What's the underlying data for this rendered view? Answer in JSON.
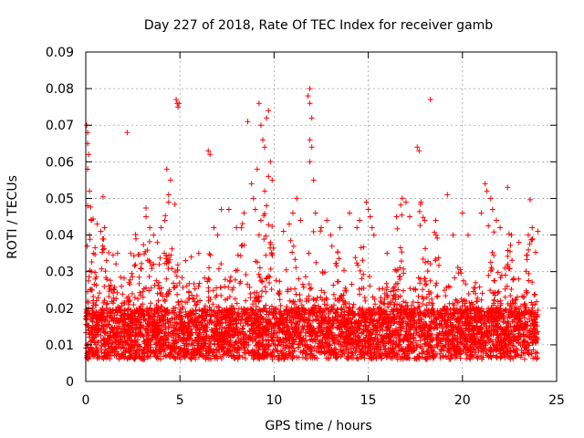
{
  "chart_data": {
    "type": "scatter",
    "title": "Day 227 of 2018, Rate Of TEC Index for receiver gamb",
    "xlabel": "GPS time / hours",
    "ylabel": "ROTI / TECUs",
    "xlim": [
      0,
      25
    ],
    "ylim": [
      0,
      0.09
    ],
    "xticks": [
      0,
      5,
      10,
      15,
      20,
      25
    ],
    "xtick_labels": [
      "0",
      "5",
      "10",
      "15",
      "20",
      "25"
    ],
    "yticks": [
      0,
      0.01,
      0.02,
      0.03,
      0.04,
      0.05,
      0.06,
      0.07,
      0.08,
      0.09
    ],
    "ytick_labels": [
      "0",
      "0.01",
      "0.02",
      "0.03",
      "0.04",
      "0.05",
      "0.06",
      "0.07",
      "0.08",
      "0.09"
    ],
    "grid": true,
    "marker": "+",
    "color": "#ff0000",
    "series": [
      {
        "name": "ROTI",
        "description": "dense scatter of ROTI samples, 0-24 h",
        "points": [
          [
            0.05,
            0.07
          ],
          [
            0.1,
            0.068
          ],
          [
            0.1,
            0.065
          ],
          [
            0.15,
            0.062
          ],
          [
            0.1,
            0.058
          ],
          [
            0.2,
            0.052
          ],
          [
            0.1,
            0.048
          ],
          [
            0.3,
            0.044
          ],
          [
            0.2,
            0.04
          ],
          [
            0.4,
            0.035
          ],
          [
            0.3,
            0.03
          ],
          [
            0.5,
            0.028
          ],
          [
            0.6,
            0.043
          ],
          [
            0.8,
            0.041
          ],
          [
            1.0,
            0.042
          ],
          [
            0.9,
            0.037
          ],
          [
            1.1,
            0.033
          ],
          [
            2.2,
            0.068
          ],
          [
            3.2,
            0.045
          ],
          [
            3.4,
            0.042
          ],
          [
            3.6,
            0.04
          ],
          [
            3.8,
            0.038
          ],
          [
            4.0,
            0.042
          ],
          [
            4.2,
            0.044
          ],
          [
            4.4,
            0.051
          ],
          [
            4.5,
            0.055
          ],
          [
            4.3,
            0.058
          ],
          [
            4.4,
            0.049
          ],
          [
            4.8,
            0.077
          ],
          [
            4.85,
            0.076
          ],
          [
            4.9,
            0.075
          ],
          [
            4.95,
            0.076
          ],
          [
            5.3,
            0.033
          ],
          [
            5.6,
            0.034
          ],
          [
            6.0,
            0.035
          ],
          [
            6.5,
            0.063
          ],
          [
            6.6,
            0.062
          ],
          [
            6.8,
            0.042
          ],
          [
            7.0,
            0.04
          ],
          [
            7.2,
            0.047
          ],
          [
            7.6,
            0.047
          ],
          [
            8.0,
            0.042
          ],
          [
            8.4,
            0.046
          ],
          [
            8.6,
            0.071
          ],
          [
            8.8,
            0.054
          ],
          [
            8.9,
            0.05
          ],
          [
            9.0,
            0.047
          ],
          [
            9.1,
            0.058
          ],
          [
            9.2,
            0.076
          ],
          [
            9.3,
            0.07
          ],
          [
            9.4,
            0.066
          ],
          [
            9.5,
            0.064
          ],
          [
            9.6,
            0.072
          ],
          [
            9.7,
            0.074
          ],
          [
            9.8,
            0.06
          ],
          [
            9.7,
            0.056
          ],
          [
            9.9,
            0.055
          ],
          [
            9.5,
            0.052
          ],
          [
            9.6,
            0.048
          ],
          [
            9.3,
            0.044
          ],
          [
            9.2,
            0.04
          ],
          [
            9.8,
            0.038
          ],
          [
            10.5,
            0.041
          ],
          [
            10.8,
            0.043
          ],
          [
            11.0,
            0.046
          ],
          [
            11.2,
            0.05
          ],
          [
            11.4,
            0.044
          ],
          [
            11.8,
            0.078
          ],
          [
            11.9,
            0.08
          ],
          [
            11.9,
            0.076
          ],
          [
            12.0,
            0.072
          ],
          [
            11.9,
            0.066
          ],
          [
            12.0,
            0.064
          ],
          [
            11.9,
            0.06
          ],
          [
            12.1,
            0.055
          ],
          [
            12.2,
            0.046
          ],
          [
            12.5,
            0.042
          ],
          [
            12.8,
            0.044
          ],
          [
            13.0,
            0.04
          ],
          [
            13.5,
            0.042
          ],
          [
            14.0,
            0.046
          ],
          [
            14.4,
            0.042
          ],
          [
            14.9,
            0.049
          ],
          [
            15.0,
            0.047
          ],
          [
            15.1,
            0.045
          ],
          [
            15.2,
            0.042
          ],
          [
            15.3,
            0.04
          ],
          [
            16.0,
            0.035
          ],
          [
            16.5,
            0.045
          ],
          [
            16.8,
            0.05
          ],
          [
            17.0,
            0.049
          ],
          [
            17.2,
            0.045
          ],
          [
            17.6,
            0.064
          ],
          [
            17.7,
            0.063
          ],
          [
            17.8,
            0.049
          ],
          [
            18.0,
            0.044
          ],
          [
            18.3,
            0.077
          ],
          [
            18.6,
            0.04
          ],
          [
            19.2,
            0.051
          ],
          [
            19.5,
            0.04
          ],
          [
            20.0,
            0.046
          ],
          [
            20.3,
            0.04
          ],
          [
            21.0,
            0.046
          ],
          [
            21.2,
            0.054
          ],
          [
            21.3,
            0.052
          ],
          [
            21.5,
            0.05
          ],
          [
            21.6,
            0.047
          ],
          [
            21.8,
            0.044
          ],
          [
            22.0,
            0.042
          ],
          [
            22.4,
            0.053
          ],
          [
            22.6,
            0.04
          ],
          [
            23.0,
            0.038
          ],
          [
            23.5,
            0.04
          ],
          [
            23.7,
            0.042
          ],
          [
            24.0,
            0.041
          ]
        ]
      }
    ]
  }
}
